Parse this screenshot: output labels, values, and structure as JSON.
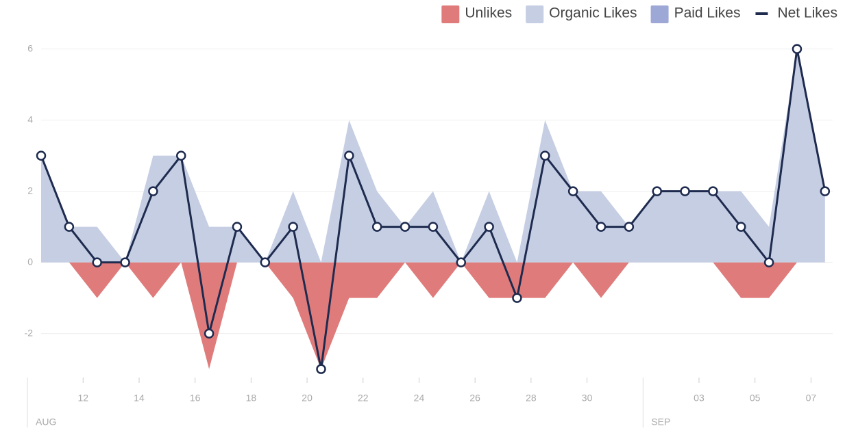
{
  "chart_data": {
    "type": "area",
    "categories": [
      null,
      null,
      "12",
      null,
      "14",
      null,
      "16",
      null,
      "18",
      null,
      "20",
      null,
      "22",
      null,
      "24",
      null,
      "26",
      null,
      "28",
      null,
      "30",
      null,
      null,
      null,
      "03",
      null,
      "05",
      null,
      "07"
    ],
    "month_labels": [
      "AUG",
      null,
      null,
      null,
      null,
      null,
      null,
      null,
      null,
      null,
      null,
      null,
      null,
      null,
      null,
      null,
      null,
      null,
      null,
      null,
      null,
      null,
      "SEP",
      null,
      null,
      null,
      null,
      null,
      null
    ],
    "series": [
      {
        "name": "Unlikes",
        "color": "#e07b7b",
        "kind": "area",
        "values": [
          0,
          0,
          -1,
          0,
          -1,
          0,
          -3,
          0,
          0,
          -1,
          -3,
          -1,
          -1,
          0,
          -1,
          0,
          -1,
          -1,
          -1,
          0,
          -1,
          0,
          0,
          0,
          0,
          -1,
          -1,
          0,
          0
        ]
      },
      {
        "name": "Organic Likes",
        "color": "#c5cee3",
        "kind": "area",
        "values": [
          3,
          1,
          1,
          0,
          3,
          3,
          1,
          1,
          0,
          2,
          0,
          4,
          2,
          1,
          2,
          0,
          2,
          0,
          4,
          2,
          2,
          1,
          2,
          2,
          2,
          2,
          1,
          6,
          2
        ]
      },
      {
        "name": "Paid Likes",
        "color": "#9ea8d6",
        "kind": "area",
        "values": [
          0,
          0,
          0,
          0,
          0,
          0,
          0,
          0,
          0,
          0,
          0,
          0,
          0,
          0,
          0,
          0,
          0,
          0,
          0,
          0,
          0,
          0,
          0,
          0,
          0,
          0,
          0,
          0,
          0
        ]
      },
      {
        "name": "Net Likes",
        "color": "#1e2b4f",
        "kind": "line",
        "values": [
          3,
          1,
          0,
          0,
          2,
          3,
          -2,
          1,
          0,
          1,
          -3,
          3,
          1,
          1,
          1,
          0,
          1,
          -1,
          3,
          2,
          1,
          1,
          2,
          2,
          2,
          1,
          0,
          6,
          2
        ]
      }
    ],
    "ylim": [
      -3.2,
      6.3
    ],
    "yticks": [
      -2,
      0,
      2,
      4,
      6
    ],
    "grid": true,
    "legend": "top-right"
  }
}
